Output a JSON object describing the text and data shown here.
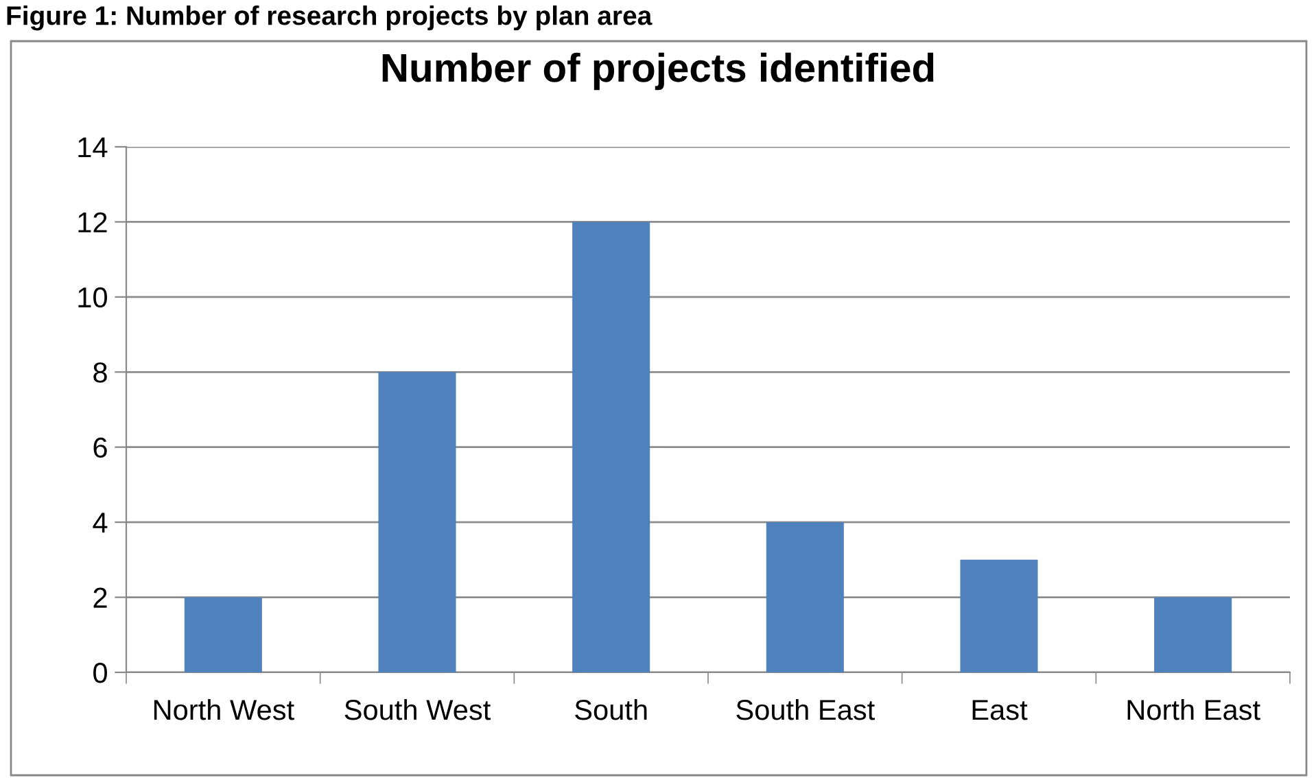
{
  "chart_data": {
    "type": "bar",
    "title": "Number of projects identified",
    "annotations": [
      "Figure 1: Number of research projects by plan area"
    ],
    "categories": [
      "North West",
      "South West",
      "South",
      "South East",
      "East",
      "North East"
    ],
    "values": [
      2,
      8,
      12,
      4,
      3,
      2
    ],
    "color": "#4f81bd",
    "ylim": [
      0,
      14
    ],
    "yticks": [
      0,
      2,
      4,
      6,
      8,
      10,
      12,
      14
    ],
    "grid": "y",
    "legend": false
  }
}
